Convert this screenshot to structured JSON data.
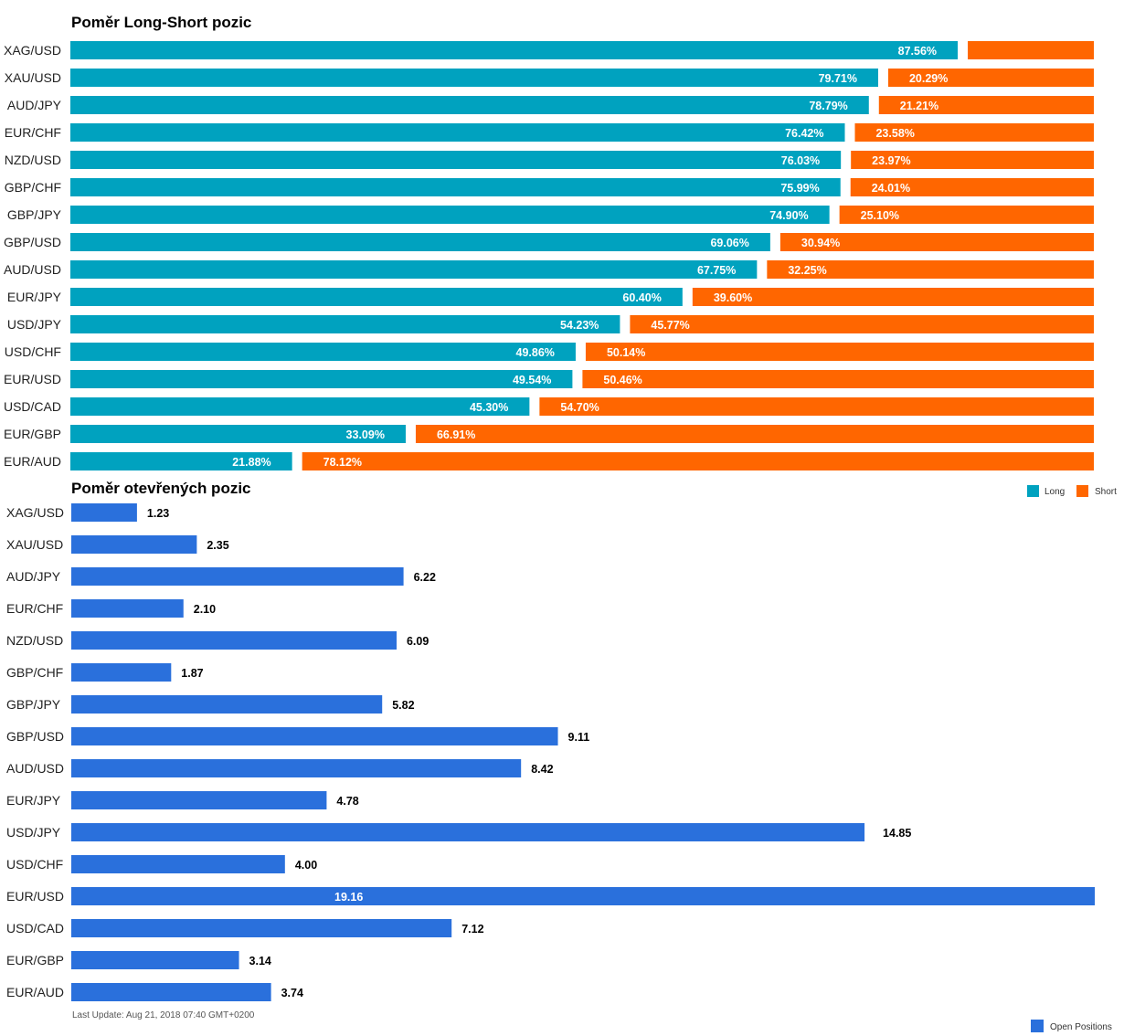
{
  "colors": {
    "long": "#00a2bf",
    "short": "#ff6600",
    "open": "#2a70dc"
  },
  "chart_data": [
    {
      "type": "bar",
      "orientation": "horizontal",
      "stacked": true,
      "title": "Poměr Long-Short pozic",
      "categories": [
        "XAG/USD",
        "XAU/USD",
        "AUD/JPY",
        "EUR/CHF",
        "NZD/USD",
        "GBP/CHF",
        "GBP/JPY",
        "GBP/USD",
        "AUD/USD",
        "EUR/JPY",
        "USD/JPY",
        "USD/CHF",
        "EUR/USD",
        "USD/CAD",
        "EUR/GBP",
        "EUR/AUD"
      ],
      "series": [
        {
          "name": "Long",
          "values": [
            87.56,
            79.71,
            78.79,
            76.42,
            76.03,
            75.99,
            74.9,
            69.06,
            67.75,
            60.4,
            54.23,
            49.86,
            49.54,
            45.3,
            33.09,
            21.88
          ],
          "labels": [
            "87.56%",
            "79.71%",
            "78.79%",
            "76.42%",
            "76.03%",
            "75.99%",
            "74.90%",
            "69.06%",
            "67.75%",
            "60.40%",
            "54.23%",
            "49.86%",
            "49.54%",
            "45.30%",
            "33.09%",
            "21.88%"
          ]
        },
        {
          "name": "Short",
          "values": [
            12.44,
            20.29,
            21.21,
            23.58,
            23.97,
            24.01,
            25.1,
            30.94,
            32.25,
            39.6,
            45.77,
            50.14,
            50.46,
            54.7,
            66.91,
            78.12
          ],
          "labels": [
            "",
            "20.29%",
            "21.21%",
            "23.58%",
            "23.97%",
            "24.01%",
            "25.10%",
            "30.94%",
            "32.25%",
            "39.60%",
            "45.77%",
            "50.14%",
            "50.46%",
            "54.70%",
            "66.91%",
            "78.12%"
          ]
        }
      ],
      "xlim": [
        0,
        100
      ],
      "legend": "bottom-right"
    },
    {
      "type": "bar",
      "orientation": "horizontal",
      "title": "Poměr otevřených pozic",
      "categories": [
        "XAG/USD",
        "XAU/USD",
        "AUD/JPY",
        "EUR/CHF",
        "NZD/USD",
        "GBP/CHF",
        "GBP/JPY",
        "GBP/USD",
        "AUD/USD",
        "EUR/JPY",
        "USD/JPY",
        "USD/CHF",
        "EUR/USD",
        "USD/CAD",
        "EUR/GBP",
        "EUR/AUD"
      ],
      "series": [
        {
          "name": "Open Positions",
          "values": [
            1.23,
            2.35,
            6.22,
            2.1,
            6.09,
            1.87,
            5.82,
            9.11,
            8.42,
            4.78,
            14.85,
            4.0,
            19.16,
            7.12,
            3.14,
            3.74
          ],
          "labels": [
            "1.23",
            "2.35",
            "6.22",
            "2.10",
            "6.09",
            "1.87",
            "5.82",
            "9.11",
            "8.42",
            "4.78",
            "14.85",
            "4.00",
            "19.16",
            "7.12",
            "3.14",
            "3.74"
          ]
        }
      ],
      "xlim": [
        0,
        19.16
      ],
      "legend": "bottom-right"
    }
  ],
  "footer": {
    "last_update": "Last Update: Aug 21, 2018 07:40 GMT+0200"
  }
}
